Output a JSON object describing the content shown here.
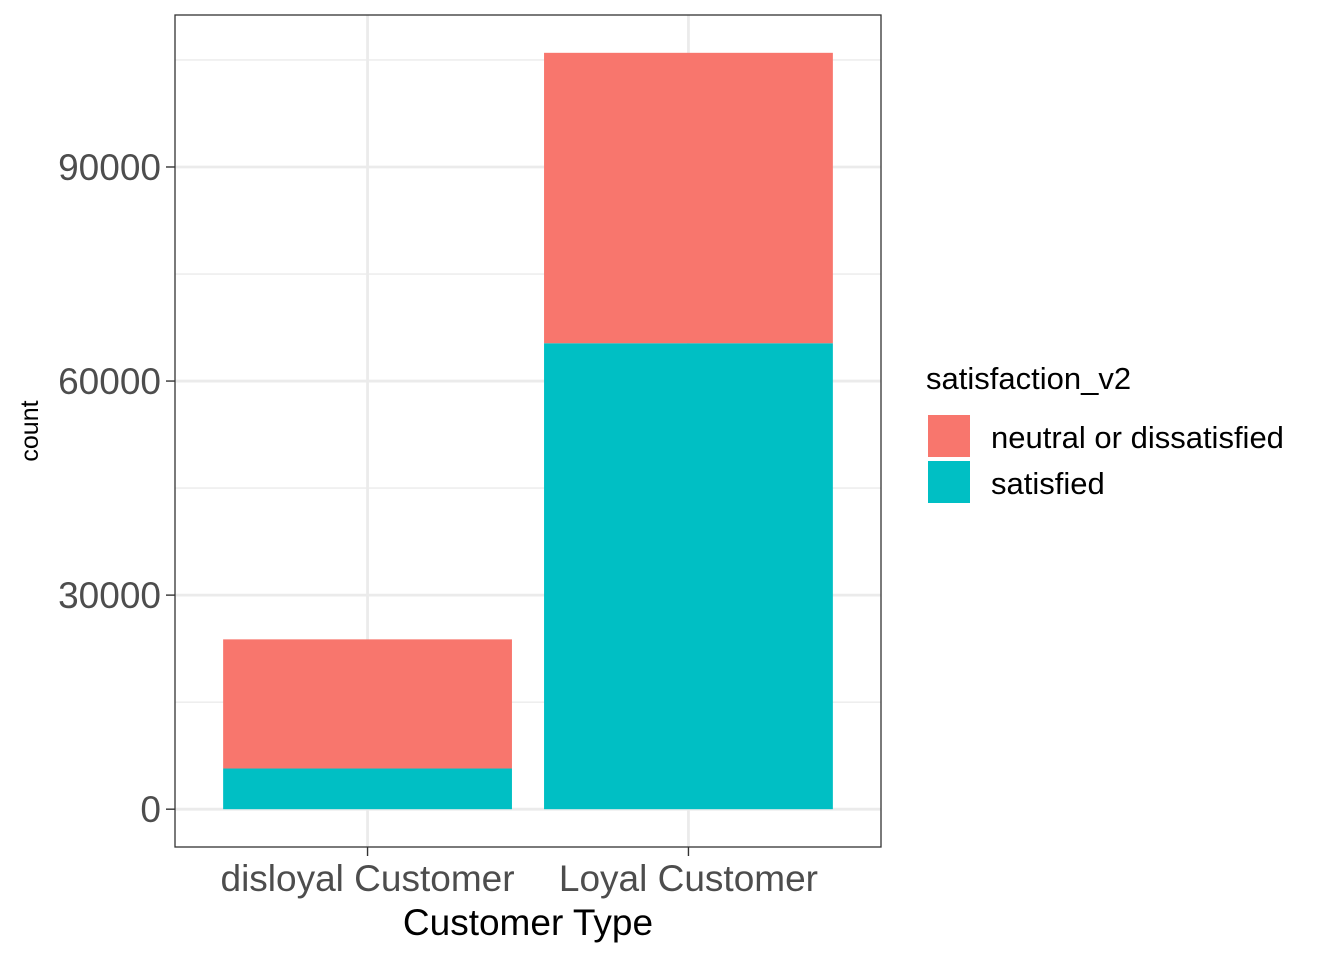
{
  "chart_data": {
    "type": "bar",
    "stacked": true,
    "xlabel": "Customer Type",
    "ylabel": "count",
    "categories": [
      "disloyal Customer",
      "Loyal Customer"
    ],
    "ylim": [
      -5300,
      111300
    ],
    "y_ticks": [
      0,
      30000,
      60000,
      90000
    ],
    "y_tick_labels": [
      "0",
      "30000",
      "60000",
      "90000"
    ],
    "grid": true,
    "legend": {
      "title": "satisfaction_v2",
      "position": "right"
    },
    "series": [
      {
        "name": "satisfied",
        "color": "#00BFC4",
        "values": [
          5700,
          65300
        ]
      },
      {
        "name": "neutral or dissatisfied",
        "color": "#F8766D",
        "values": [
          18100,
          40700
        ]
      }
    ],
    "legend_order": [
      "neutral or dissatisfied",
      "satisfied"
    ]
  }
}
